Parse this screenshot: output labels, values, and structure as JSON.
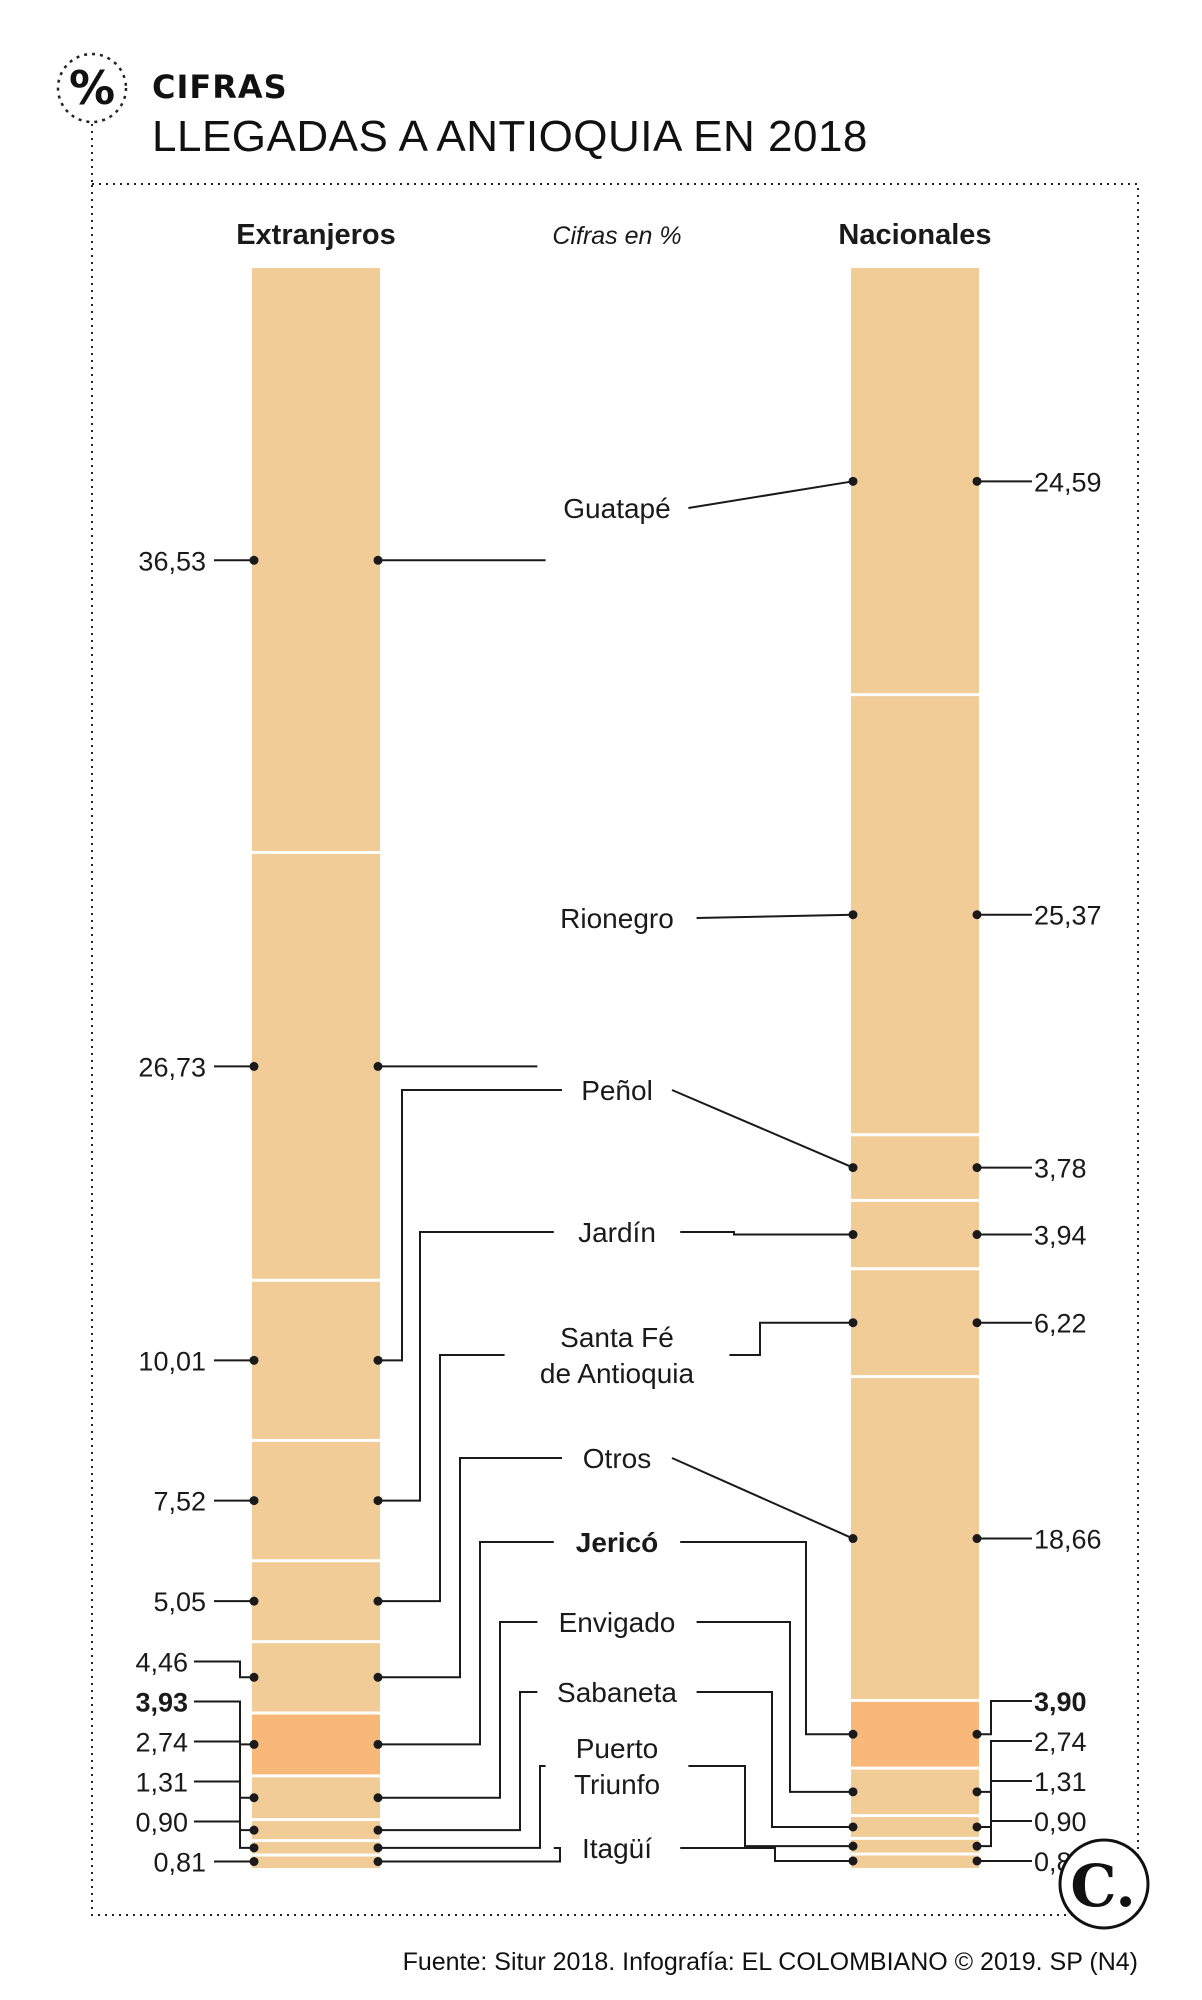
{
  "header": {
    "badge_symbol": "%",
    "section": "CIFRAS",
    "title": "LLEGADAS A ANTIOQUIA EN 2018"
  },
  "footer": {
    "source": "Fuente: Situr 2018. Infografía: EL COLOMBIANO © 2019. SP (N4)",
    "logo_letter": "C."
  },
  "colors": {
    "bar": "#f1cc97",
    "highlight": "#f7b87a",
    "divider": "#ffffff",
    "line": "#1a1a1a"
  },
  "chart_data": {
    "type": "bar",
    "subtitle": "Cifras en %",
    "series": [
      {
        "name": "Extranjeros",
        "values": [
          {
            "label": "Guatapé",
            "display": "36,53",
            "value": 36.53
          },
          {
            "label": "Rionegro",
            "display": "26,73",
            "value": 26.73
          },
          {
            "label": "Peñol",
            "display": "10,01",
            "value": 10.01
          },
          {
            "label": "Jardín",
            "display": "7,52",
            "value": 7.52
          },
          {
            "label": "Santa Fé de Antioquia",
            "display": "5,05",
            "value": 5.05
          },
          {
            "label": "Otros",
            "display": "4,46",
            "value": 4.46
          },
          {
            "label": "Jericó",
            "display": "3,93",
            "value": 3.93,
            "highlight": true
          },
          {
            "label": "Envigado",
            "display": "2,74",
            "value": 2.74
          },
          {
            "label": "Sabaneta",
            "display": "1,31",
            "value": 1.31
          },
          {
            "label": "Puerto Triunfo",
            "display": "0,90",
            "value": 0.9
          },
          {
            "label": "Itagüí",
            "display": "0,81",
            "value": 0.81
          }
        ]
      },
      {
        "name": "Nacionales",
        "values": [
          {
            "label": "Guatapé",
            "display": "24,59",
            "value": 24.59
          },
          {
            "label": "Rionegro",
            "display": "25,37",
            "value": 25.37
          },
          {
            "label": "Peñol",
            "display": "3,78",
            "value": 3.78
          },
          {
            "label": "Jardín",
            "display": "3,94",
            "value": 3.94
          },
          {
            "label": "Santa Fé de Antioquia",
            "display": "6,22",
            "value": 6.22
          },
          {
            "label": "Otros",
            "display": "18,66",
            "value": 18.66
          },
          {
            "label": "Jericó",
            "display": "3,90",
            "value": 3.9,
            "highlight": true
          },
          {
            "label": "Envigado",
            "display": "2,74",
            "value": 2.74
          },
          {
            "label": "Sabaneta",
            "display": "1,31",
            "value": 1.31
          },
          {
            "label": "Puerto Triunfo",
            "display": "0,90",
            "value": 0.9
          },
          {
            "label": "Itagüí",
            "display": "0,81",
            "value": 0.81
          }
        ]
      }
    ],
    "categories": [
      {
        "name": "Guatapé",
        "lines": [
          "Guatapé"
        ]
      },
      {
        "name": "Rionegro",
        "lines": [
          "Rionegro"
        ]
      },
      {
        "name": "Peñol",
        "lines": [
          "Peñol"
        ]
      },
      {
        "name": "Jardín",
        "lines": [
          "Jardín"
        ]
      },
      {
        "name": "Santa Fé de Antioquia",
        "lines": [
          "Santa Fé",
          "de Antioquia"
        ]
      },
      {
        "name": "Otros",
        "lines": [
          "Otros"
        ]
      },
      {
        "name": "Jericó",
        "lines": [
          "Jericó"
        ],
        "bold": true
      },
      {
        "name": "Envigado",
        "lines": [
          "Envigado"
        ]
      },
      {
        "name": "Sabaneta",
        "lines": [
          "Sabaneta"
        ]
      },
      {
        "name": "Puerto Triunfo",
        "lines": [
          "Puerto",
          "Triunfo"
        ]
      },
      {
        "name": "Itagüí",
        "lines": [
          "Itagüí"
        ]
      }
    ]
  }
}
